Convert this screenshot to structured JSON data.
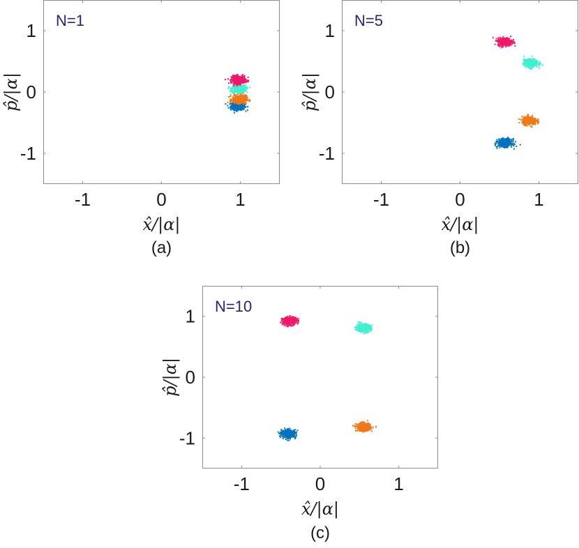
{
  "chart_data": [
    {
      "type": "scatter",
      "panel_label": "N=1",
      "caption": "(a)",
      "xlabel": "x̂/|α|",
      "ylabel": "p̂/|α|",
      "xlim": [
        -1.5,
        1.5
      ],
      "ylim": [
        -1.5,
        1.5
      ],
      "xticks": [
        -1,
        0,
        1
      ],
      "yticks": [
        1,
        0,
        -1
      ],
      "xtick_labels": [
        "-1",
        "0",
        "1"
      ],
      "ytick_labels": [
        "1",
        "0",
        "-1"
      ],
      "grid": false,
      "clusters": [
        {
          "color": "#0072bd",
          "center": [
            0.97,
            -0.23
          ]
        },
        {
          "color": "#40f0d0",
          "center": [
            0.98,
            0.05
          ]
        },
        {
          "color": "#f0186a",
          "center": [
            0.98,
            0.2
          ]
        },
        {
          "color": "#f07818",
          "center": [
            0.99,
            -0.12
          ]
        }
      ]
    },
    {
      "type": "scatter",
      "panel_label": "N=5",
      "caption": "(b)",
      "xlabel": "x̂/|α|",
      "ylabel": "p̂/|α|",
      "xlim": [
        -1.5,
        1.5
      ],
      "ylim": [
        -1.5,
        1.5
      ],
      "xticks": [
        -1,
        0,
        1
      ],
      "yticks": [
        1,
        0,
        -1
      ],
      "xtick_labels": [
        "-1",
        "0",
        "1"
      ],
      "ytick_labels": [
        "1",
        "0",
        "-1"
      ],
      "grid": false,
      "clusters": [
        {
          "color": "#f0186a",
          "center": [
            0.57,
            0.82
          ]
        },
        {
          "color": "#40f0d0",
          "center": [
            0.9,
            0.47
          ]
        },
        {
          "color": "#f07818",
          "center": [
            0.88,
            -0.47
          ]
        },
        {
          "color": "#0072bd",
          "center": [
            0.57,
            -0.83
          ]
        }
      ]
    },
    {
      "type": "scatter",
      "panel_label": "N=10",
      "caption": "(c)",
      "xlabel": "x̂/|α|",
      "ylabel": "p̂/|α|",
      "xlim": [
        -1.5,
        1.5
      ],
      "ylim": [
        -1.5,
        1.5
      ],
      "xticks": [
        -1,
        0,
        1
      ],
      "yticks": [
        1,
        0,
        -1
      ],
      "xtick_labels": [
        "-1",
        "0",
        "1"
      ],
      "ytick_labels": [
        "1",
        "0",
        "-1"
      ],
      "grid": false,
      "clusters": [
        {
          "color": "#f0186a",
          "center": [
            -0.39,
            0.92
          ]
        },
        {
          "color": "#40f0d0",
          "center": [
            0.55,
            0.81
          ]
        },
        {
          "color": "#0072bd",
          "center": [
            -0.4,
            -0.93
          ]
        },
        {
          "color": "#f07818",
          "center": [
            0.55,
            -0.82
          ]
        }
      ]
    }
  ]
}
